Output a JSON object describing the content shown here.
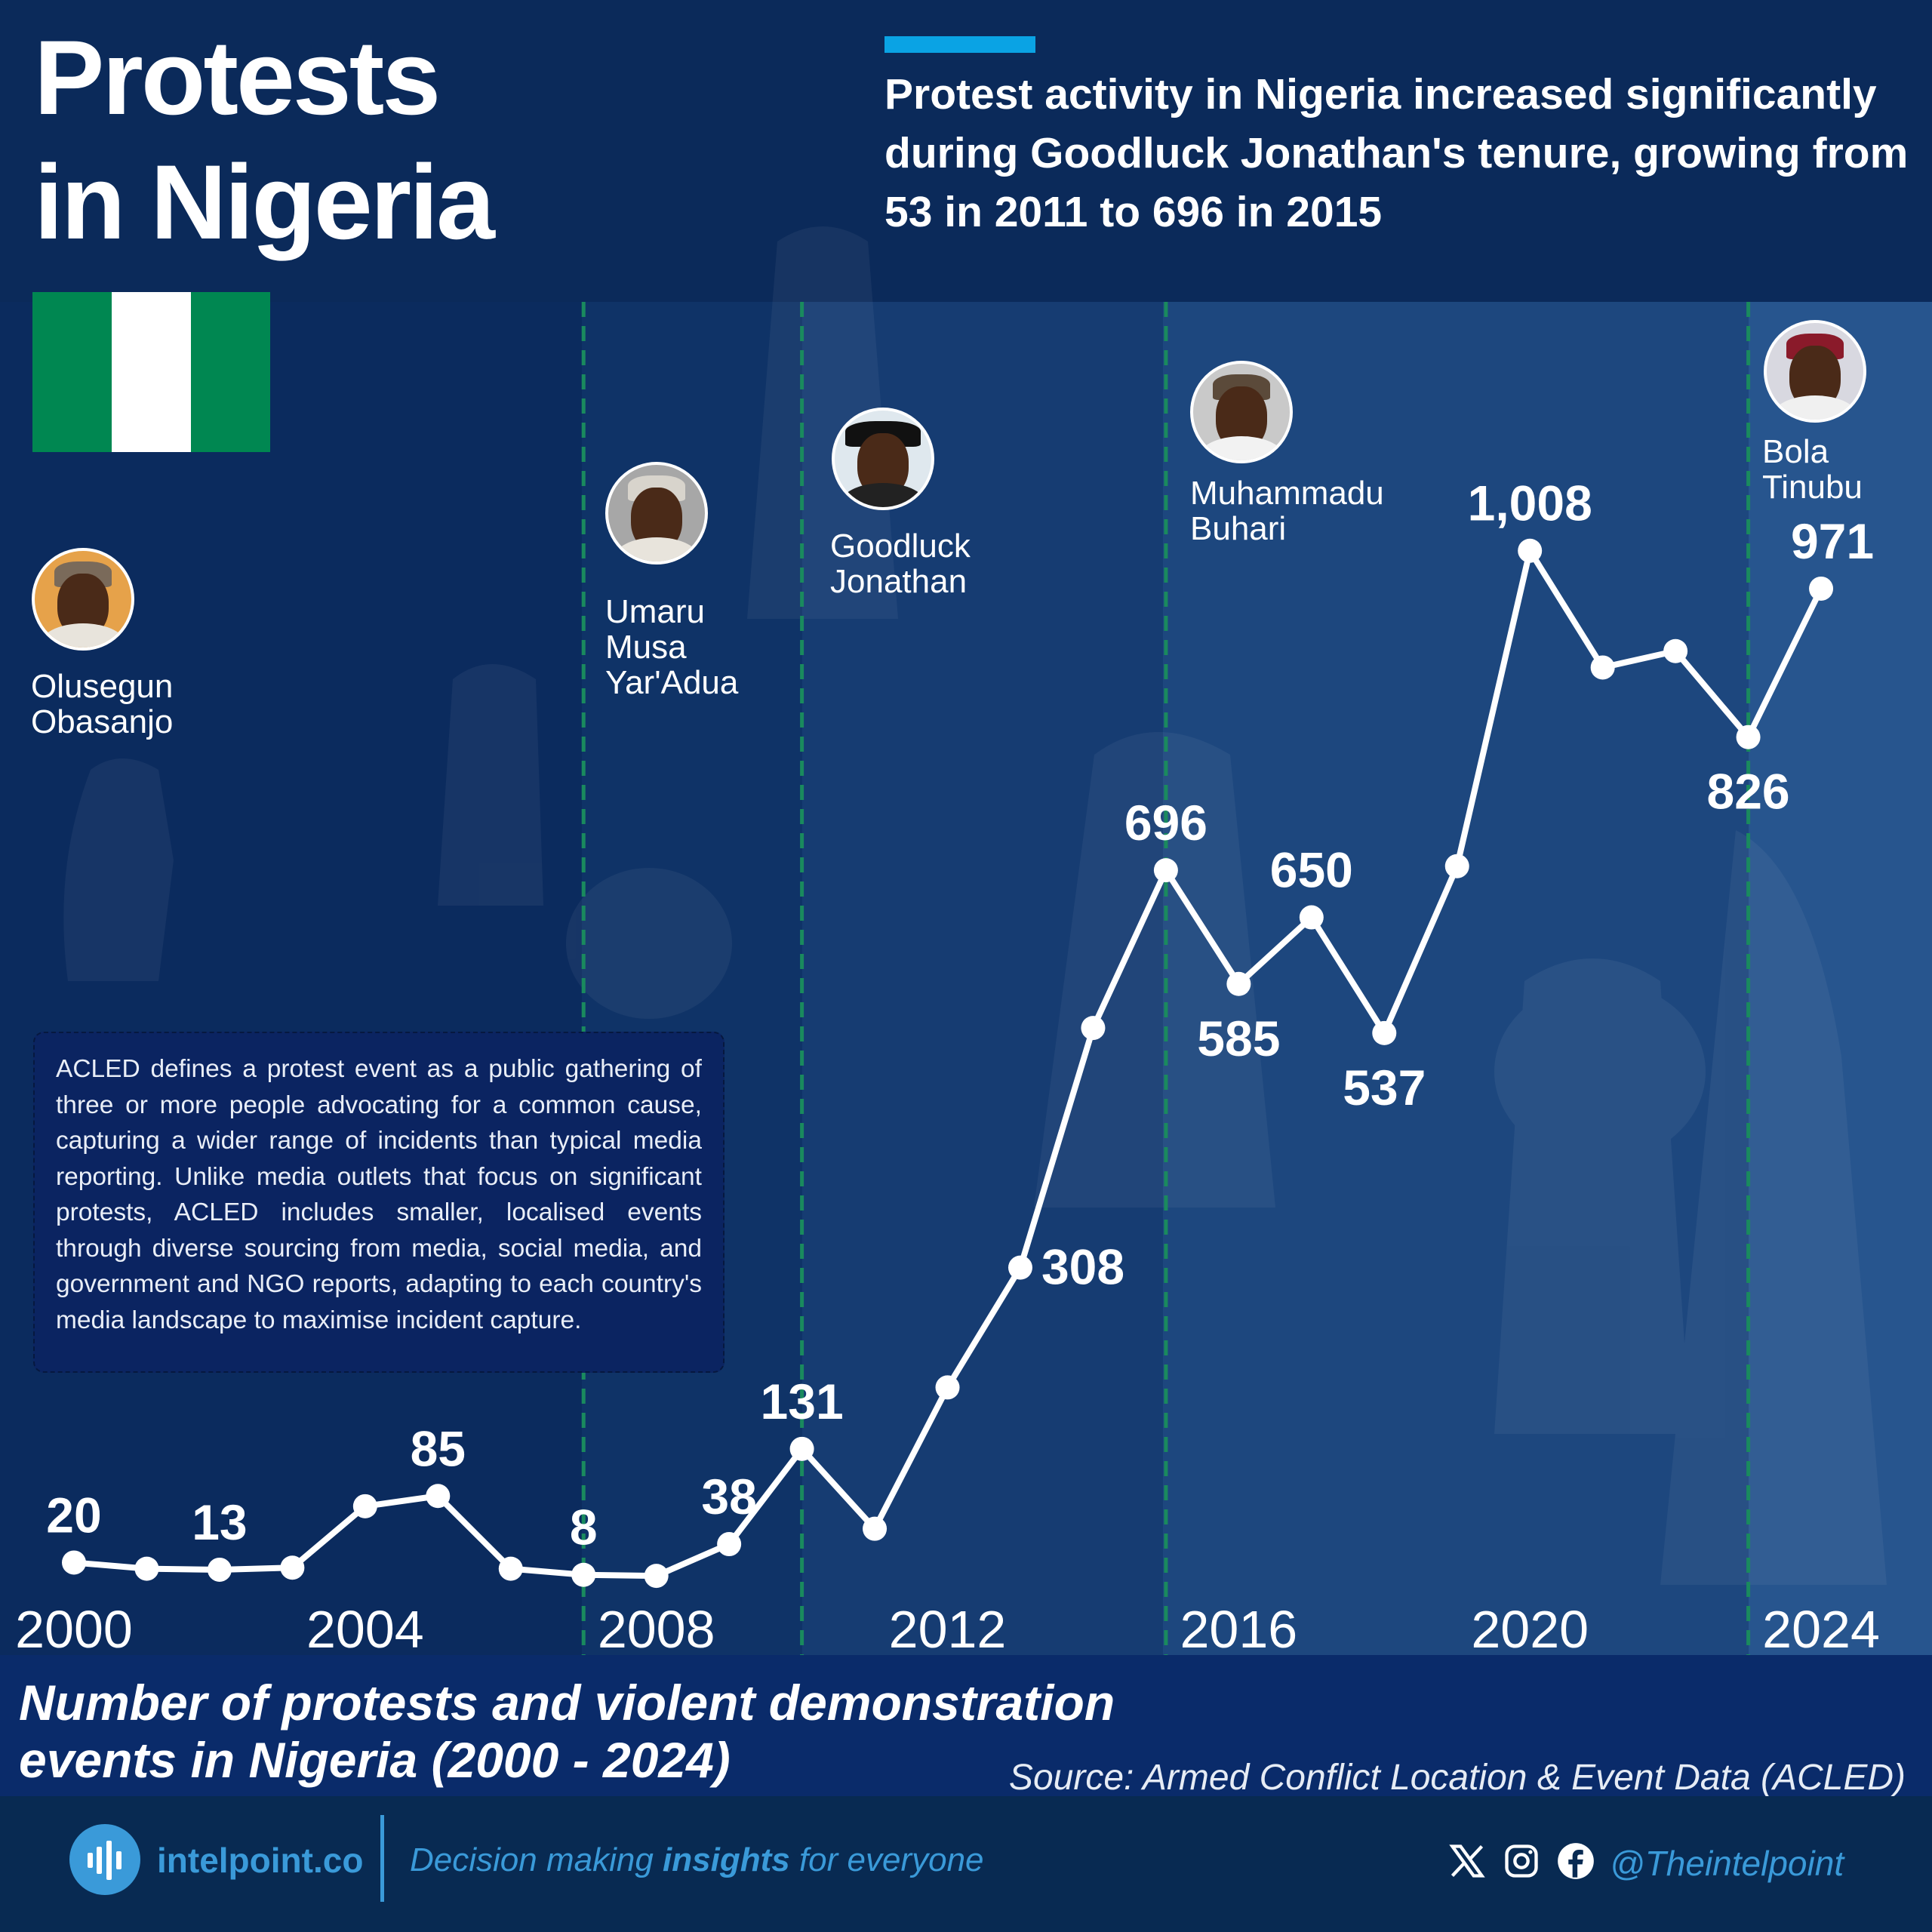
{
  "header": {
    "title_line1": "Protests",
    "title_line2": "in Nigeria",
    "headline": "Protest activity in Nigeria increased significantly during Goodluck Jonathan's tenure, growing from 53 in 2011 to 696 in 2015"
  },
  "colors": {
    "accent": "#0aa3e4",
    "flag_green": "#008751",
    "flag_white": "#ffffff",
    "dashed_line": "#1a8a5e",
    "brand": "#3a9ad9"
  },
  "presidents": [
    {
      "name_line1": "Olusegun",
      "name_line2": "Obasanjo"
    },
    {
      "name_line1": "Umaru",
      "name_line2": "Musa",
      "name_line3": "Yar'Adua"
    },
    {
      "name_line1": "Goodluck",
      "name_line2": "Jonathan"
    },
    {
      "name_line1": "Muhammadu",
      "name_line2": "Buhari"
    },
    {
      "name_line1": "Bola",
      "name_line2": "Tinubu"
    }
  ],
  "note": "ACLED defines a protest event as a public gathering of three or more people advocating for a common cause, capturing a wider range of incidents than typical media reporting. Unlike media outlets that focus on significant protests, ACLED includes smaller, localised events through diverse sourcing from media, social media, and government and NGO reports, adapting to each country's media landscape to maximise incident capture.",
  "chart_data": {
    "type": "line",
    "title": "Number of protests and violent demonstration events in Nigeria (2000 - 2024)",
    "title_line1": "Number of protests and violent demonstration",
    "title_line2": "events in Nigeria (2000 - 2024)",
    "source": "Source: Armed Conflict Location & Event Data (ACLED)",
    "x": [
      2000,
      2001,
      2002,
      2003,
      2004,
      2005,
      2006,
      2007,
      2008,
      2009,
      2010,
      2011,
      2012,
      2013,
      2014,
      2015,
      2016,
      2017,
      2018,
      2019,
      2020,
      2021,
      2022,
      2023,
      2024
    ],
    "values": [
      20,
      14,
      13,
      15,
      75,
      85,
      14,
      8,
      7,
      38,
      131,
      53,
      191,
      308,
      542,
      696,
      585,
      650,
      537,
      700,
      1008,
      894,
      910,
      826,
      971
    ],
    "data_labels": [
      {
        "year": 2000,
        "text": "20",
        "placement": "above"
      },
      {
        "year": 2002,
        "text": "13",
        "placement": "above"
      },
      {
        "year": 2005,
        "text": "85",
        "placement": "above"
      },
      {
        "year": 2007,
        "text": "8",
        "placement": "above"
      },
      {
        "year": 2009,
        "text": "38",
        "placement": "above"
      },
      {
        "year": 2010,
        "text": "131",
        "placement": "above"
      },
      {
        "year": 2013,
        "text": "308",
        "placement": "right"
      },
      {
        "year": 2015,
        "text": "696",
        "placement": "above"
      },
      {
        "year": 2016,
        "text": "585",
        "placement": "below"
      },
      {
        "year": 2017,
        "text": "650",
        "placement": "above"
      },
      {
        "year": 2018,
        "text": "537",
        "placement": "below"
      },
      {
        "year": 2020,
        "text": "1,008",
        "placement": "above"
      },
      {
        "year": 2023,
        "text": "826",
        "placement": "below"
      },
      {
        "year": 2024,
        "text": "971",
        "placement": "above"
      }
    ],
    "x_tick_labels": [
      "2000",
      "2004",
      "2008",
      "2012",
      "2016",
      "2020",
      "2024"
    ],
    "x_ticks": [
      2000,
      2004,
      2008,
      2012,
      2016,
      2020,
      2024
    ],
    "term_boundaries": [
      2007,
      2010,
      2015,
      2023
    ],
    "ylim": [
      0,
      1100
    ],
    "grid": false,
    "xlabel": "",
    "ylabel": ""
  },
  "footer": {
    "brand": "intelpoint.co",
    "tagline_pre": "Decision making ",
    "tagline_bold": "insights",
    "tagline_post": " for everyone",
    "handle": "@Theintelpoint"
  }
}
